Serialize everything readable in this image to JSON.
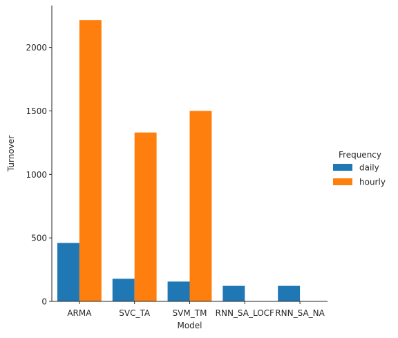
{
  "chart_data": {
    "type": "bar",
    "xlabel": "Model",
    "ylabel": "Turnover",
    "categories": [
      "ARMA",
      "SVC_TA",
      "SVM_TM",
      "RNN_SA_LOCF",
      "RNN_SA_NA"
    ],
    "series": [
      {
        "name": "daily",
        "color": "#1f77b4",
        "values": [
          460,
          178,
          156,
          122,
          122
        ]
      },
      {
        "name": "hourly",
        "color": "#ff7f0e",
        "values": [
          2215,
          1330,
          1500,
          null,
          null
        ]
      }
    ],
    "ylim": [
      0,
      2330
    ],
    "yticks": [
      0,
      500,
      1000,
      1500,
      2000
    ],
    "grid": false,
    "legend": {
      "title": "Frequency",
      "position": "right"
    }
  }
}
